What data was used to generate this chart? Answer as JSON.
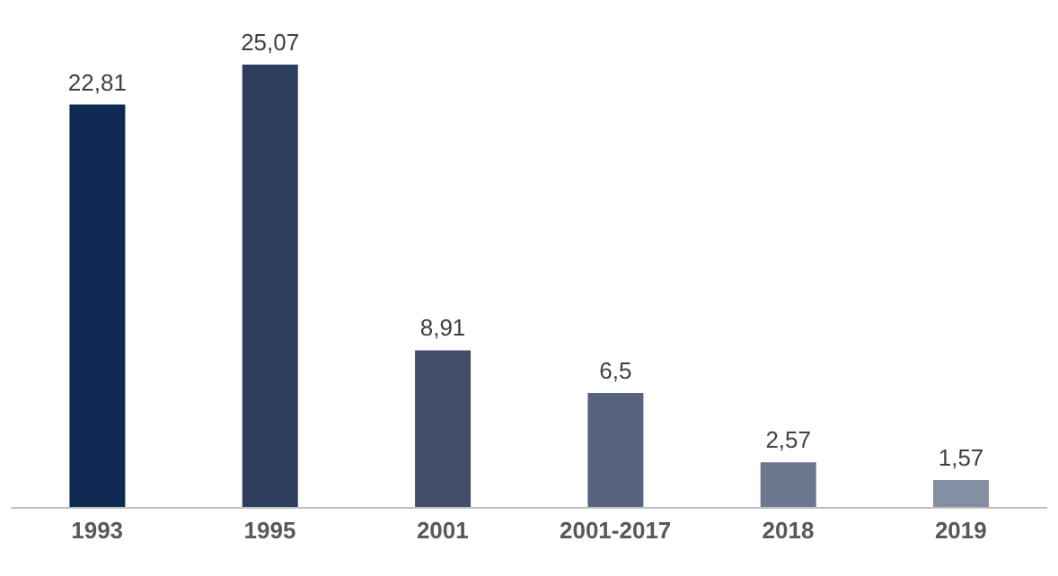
{
  "chart_data": {
    "type": "bar",
    "categories": [
      "1993",
      "1995",
      "2001",
      "2001-2017",
      "2018",
      "2019"
    ],
    "values": [
      22.81,
      25.07,
      8.91,
      6.5,
      2.57,
      1.57
    ],
    "colors": [
      "#0f2a52",
      "#2c3d5e",
      "#414f6d",
      "#56647f",
      "#6b7890",
      "#848fa3"
    ],
    "value_labels": [
      "22,81",
      "25,07",
      "8,91",
      "6,5",
      "2,57",
      "1,57"
    ]
  }
}
